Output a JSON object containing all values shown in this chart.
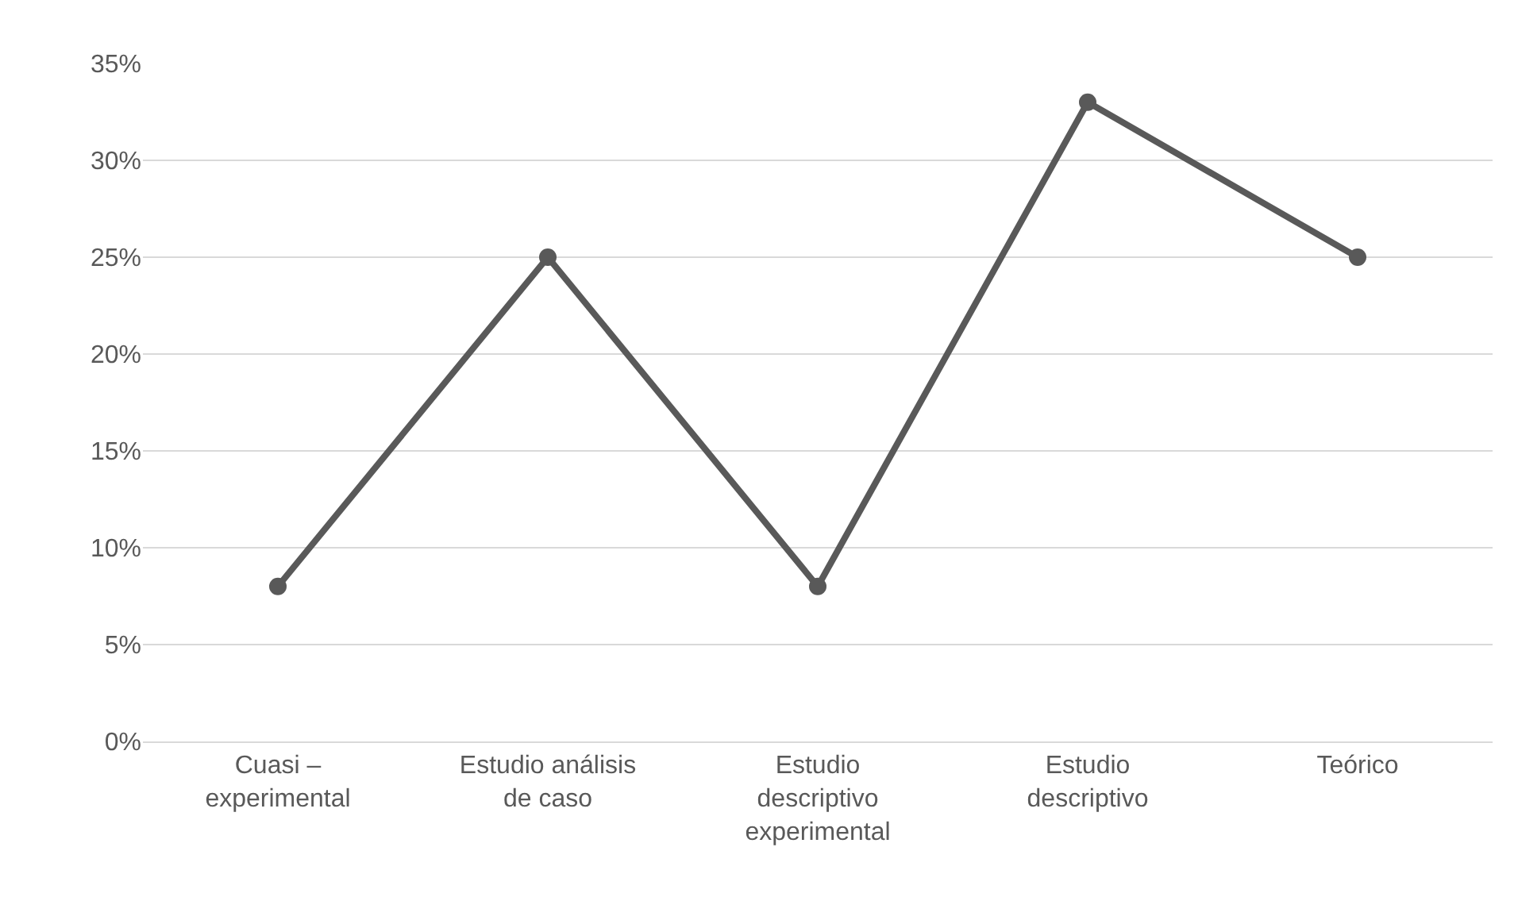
{
  "chart_data": {
    "type": "line",
    "categories": [
      "Cuasi – experimental",
      "Estudio análisis de caso",
      "Estudio descriptivo experimental",
      "Estudio descriptivo",
      "Teórico"
    ],
    "series": [
      {
        "color": "#595959",
        "values": [
          8,
          25,
          8,
          33,
          25
        ]
      }
    ],
    "ylim": [
      0,
      35
    ],
    "yticks": [
      {
        "value": 0,
        "label": "0%"
      },
      {
        "value": 5,
        "label": "5%"
      },
      {
        "value": 10,
        "label": "10%"
      },
      {
        "value": 15,
        "label": "15%"
      },
      {
        "value": 20,
        "label": "20%"
      },
      {
        "value": 25,
        "label": "25%"
      },
      {
        "value": 30,
        "label": "30%"
      },
      {
        "value": 35,
        "label": "35%"
      }
    ],
    "grid": "y",
    "marker": "circle",
    "line_style": "solid",
    "legend": false
  }
}
